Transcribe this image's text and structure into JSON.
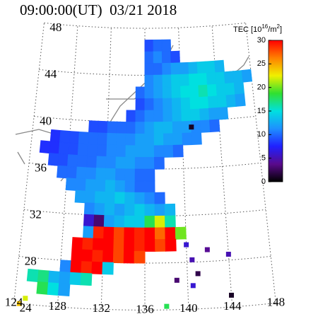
{
  "title": "09:00:00(UT)  03/21 2018",
  "colorbar": {
    "label": {
      "prefix": "TEC [10",
      "exp": "16",
      "unit": "/m",
      "unit_exp": "2",
      "suffix": "]"
    },
    "range": [
      0,
      30
    ],
    "ticks": [
      0,
      5,
      10,
      15,
      20,
      25,
      30
    ],
    "colors": [
      "#000000",
      "#5a0a8c",
      "#2020ff",
      "#1e90ff",
      "#00e0e0",
      "#30e030",
      "#f0f000",
      "#ff8000",
      "#ff0000"
    ]
  },
  "map": {
    "lat_labels": [
      48,
      44,
      40,
      36,
      32,
      28,
      24
    ],
    "lon_labels": [
      124,
      128,
      132,
      136,
      140,
      144,
      148
    ],
    "lat_range": [
      24,
      48
    ],
    "lon_range": [
      124,
      148
    ],
    "tec_rows": [
      {
        "lat": 46,
        "lon": 136,
        "values": [
          9,
          10,
          10
        ]
      },
      {
        "lat": 45,
        "lon": 136,
        "values": [
          10,
          11,
          10,
          9
        ]
      },
      {
        "lat": 44,
        "lon": 136,
        "values": [
          10,
          10,
          11,
          12,
          12,
          13,
          14,
          14,
          13
        ]
      },
      {
        "lat": 43,
        "lon": 136,
        "values": [
          11,
          12,
          13,
          14,
          14,
          15,
          15,
          14,
          14,
          13,
          13,
          12
        ]
      },
      {
        "lat": 42,
        "lon": 135,
        "values": [
          10,
          11,
          12,
          13,
          14,
          15,
          15,
          16,
          15,
          14,
          14,
          13
        ]
      },
      {
        "lat": 41,
        "lon": 135,
        "values": [
          9,
          10,
          11,
          12,
          13,
          14,
          15,
          15,
          14,
          14,
          13,
          12
        ]
      },
      {
        "lat": 40,
        "lon": 134,
        "values": [
          9,
          10,
          11,
          11,
          12,
          13,
          14,
          14,
          13,
          12,
          12
        ]
      },
      {
        "lat": 39,
        "lon": 130,
        "values": [
          9,
          9,
          10,
          10,
          10,
          11,
          12,
          13,
          13,
          12,
          12,
          11,
          11,
          10
        ]
      },
      {
        "lat": 38,
        "lon": 126,
        "values": [
          8,
          9,
          9,
          10,
          10,
          10,
          11,
          11,
          11,
          12,
          12,
          13,
          12,
          12,
          11,
          11
        ]
      },
      {
        "lat": 37,
        "lon": 125,
        "values": [
          8,
          8,
          9,
          9,
          10,
          10,
          10,
          11,
          11,
          12,
          12,
          12,
          11,
          11,
          10
        ]
      },
      {
        "lat": 36,
        "lon": 126,
        "values": [
          9,
          9,
          10,
          10,
          10,
          11,
          11,
          12,
          12,
          11,
          11,
          10
        ]
      },
      {
        "lat": 35,
        "lon": 127,
        "values": [
          10,
          10,
          11,
          11,
          12,
          12,
          11,
          11,
          10,
          10
        ]
      },
      {
        "lat": 34,
        "lon": 128,
        "values": [
          11,
          11,
          12,
          12,
          13,
          12,
          11,
          10,
          10
        ]
      },
      {
        "lat": 33,
        "lon": 129,
        "values": [
          12,
          12,
          13,
          13,
          14,
          13,
          12,
          11,
          10
        ]
      },
      {
        "lat": 32,
        "lon": 130,
        "values": [
          11,
          12,
          13,
          12,
          13,
          14,
          13,
          12,
          13
        ]
      },
      {
        "lat": 31,
        "lon": 130,
        "values": [
          6,
          3,
          12,
          13,
          14,
          14,
          18,
          22,
          16
        ]
      },
      {
        "lat": 30,
        "lon": 130,
        "values": [
          12,
          29,
          30,
          28,
          30,
          29,
          30,
          27,
          30,
          20
        ]
      },
      {
        "lat": 29,
        "lon": 129,
        "values": [
          30,
          29,
          30,
          30,
          28,
          30,
          29,
          30,
          28,
          30
        ]
      },
      {
        "lat": 28,
        "lon": 129,
        "values": [
          30,
          30,
          29,
          30,
          28,
          30,
          28
        ]
      },
      {
        "lat": 27,
        "lon": 128,
        "values": [
          11,
          30,
          29,
          30,
          14
        ]
      },
      {
        "lat": 26,
        "lon": 125,
        "values": [
          16,
          17,
          13,
          12,
          14,
          16
        ]
      },
      {
        "lat": 25,
        "lon": 126,
        "values": [
          18,
          15,
          12
        ]
      }
    ],
    "tec_points": [
      {
        "lat": 29.5,
        "lon": 140,
        "value": 6
      },
      {
        "lat": 28.2,
        "lon": 140.5,
        "value": 5
      },
      {
        "lat": 29,
        "lon": 142,
        "value": 4
      },
      {
        "lat": 28.5,
        "lon": 144,
        "value": 5
      },
      {
        "lat": 26.5,
        "lon": 139,
        "value": 3
      },
      {
        "lat": 26,
        "lon": 140.5,
        "value": 6
      },
      {
        "lat": 25,
        "lon": 144,
        "value": 1
      },
      {
        "lat": 27,
        "lon": 141,
        "value": 2
      },
      {
        "lat": 24.3,
        "lon": 138,
        "value": 18
      },
      {
        "lat": 24.5,
        "lon": 125,
        "value": 22
      },
      {
        "lat": 24,
        "lon": 124.5,
        "value": 24
      },
      {
        "lat": 39.5,
        "lon": 141,
        "value": 1
      }
    ]
  }
}
